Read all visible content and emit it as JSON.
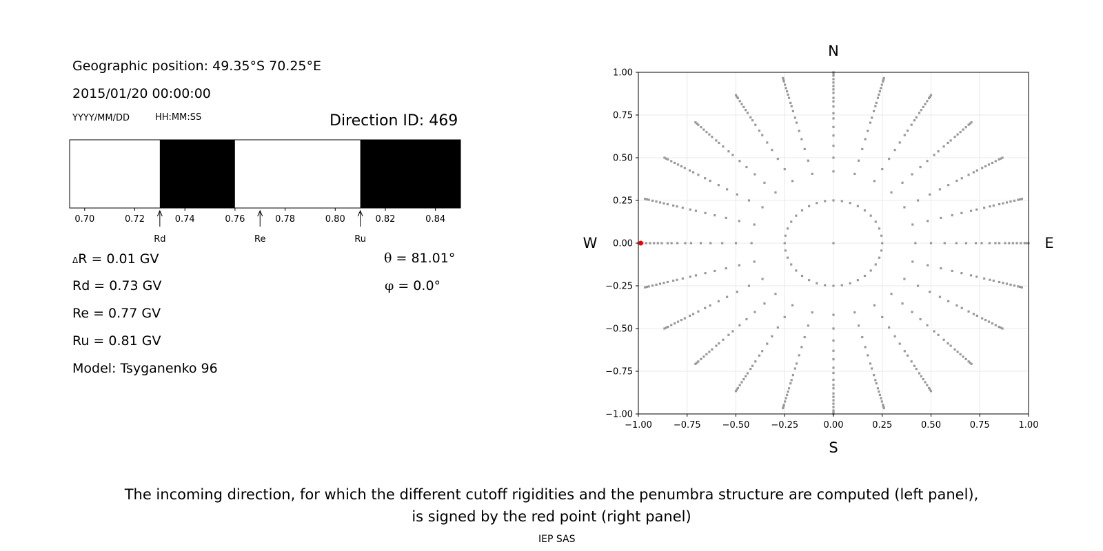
{
  "info": {
    "geo_position": "Geographic position: 49.35°S 70.25°E",
    "datetime": "2015/01/20 00:00:00",
    "date_format": "YYYY/MM/DD",
    "time_format": "HH:MM:SS",
    "direction_id": "Direction ID: 469"
  },
  "results": {
    "delta_symbol": "Δ",
    "delta_r": "R = 0.01 GV",
    "rd": "Rd = 0.73 GV",
    "re": "Re = 0.77 GV",
    "ru": "Ru = 0.81 GV",
    "model": "Model: Tsyganenko 96",
    "theta_symbol": "θ",
    "theta": " = 81.01°",
    "phi_symbol": "φ",
    "phi": " = 0.0°"
  },
  "caption": {
    "line1": "The incoming direction, for which the different cutoff rigidities and the penumbra structure are computed (left panel),",
    "line2": "is signed by the red point (right panel)"
  },
  "footer": "IEP SAS",
  "chart_data": [
    {
      "type": "bar",
      "description_kind": "penumbra",
      "xlim": [
        0.694,
        0.85
      ],
      "xticks": [
        0.7,
        0.72,
        0.74,
        0.76,
        0.78,
        0.8,
        0.82,
        0.84
      ],
      "xtick_labels": [
        "0.70",
        "0.72",
        "0.74",
        "0.76",
        "0.78",
        "0.80",
        "0.82",
        "0.84"
      ],
      "segments": [
        {
          "from": 0.694,
          "to": 0.73,
          "color": "#ffffff"
        },
        {
          "from": 0.73,
          "to": 0.76,
          "color": "#000000"
        },
        {
          "from": 0.76,
          "to": 0.81,
          "color": "#ffffff"
        },
        {
          "from": 0.81,
          "to": 0.85,
          "color": "#000000"
        }
      ],
      "markers": [
        {
          "label": "Rd",
          "value": 0.73
        },
        {
          "label": "Re",
          "value": 0.77
        },
        {
          "label": "Ru",
          "value": 0.81
        }
      ]
    },
    {
      "type": "scatter",
      "xlim": [
        -1.0,
        1.0
      ],
      "ylim": [
        -1.0,
        1.0
      ],
      "xticks": [
        -1.0,
        -0.75,
        -0.5,
        -0.25,
        0.0,
        0.25,
        0.5,
        0.75,
        1.0
      ],
      "xtick_labels": [
        "−1.00",
        "−0.75",
        "−0.50",
        "−0.25",
        "0.00",
        "0.25",
        "0.50",
        "0.75",
        "1.00"
      ],
      "yticks": [
        1.0,
        0.75,
        0.5,
        0.25,
        0.0,
        -0.25,
        -0.5,
        -0.75,
        -1.0
      ],
      "ytick_labels": [
        "1.00",
        "0.75",
        "0.50",
        "0.25",
        "0.00",
        "−0.25",
        "−0.50",
        "−0.75",
        "−1.00"
      ],
      "grid": true,
      "compass": {
        "north": "N",
        "south": "S",
        "east": "E",
        "west": "W"
      },
      "directions_grid": {
        "azimuth_step_deg": 15,
        "inner_ring_radius": 0.25,
        "inner_ring_step_deg": 10,
        "radial_distances": [
          0.25,
          0.42,
          0.5,
          0.57,
          0.63,
          0.68,
          0.73,
          0.76,
          0.8,
          0.83,
          0.85,
          0.88,
          0.9,
          0.92,
          0.94,
          0.96,
          0.98,
          0.99,
          1.0
        ],
        "center_point": [
          0.0,
          0.0
        ],
        "color": "#999999"
      },
      "selected_point": {
        "x": -0.988,
        "y": 0.0,
        "color": "#ee0000"
      }
    }
  ]
}
